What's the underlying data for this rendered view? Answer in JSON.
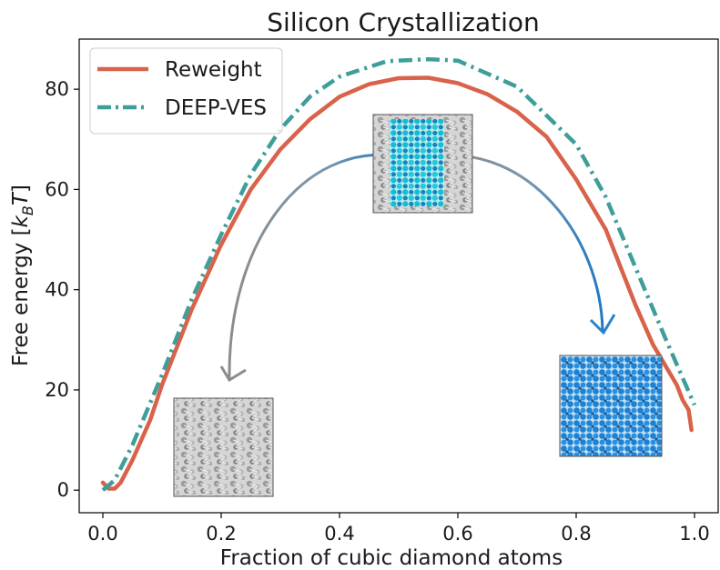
{
  "chart_data": {
    "type": "line",
    "title": "Silicon Crystallization",
    "xlabel": "Fraction of cubic diamond atoms",
    "ylabel": "Free energy",
    "ylabel_unit": "k_B T",
    "xlim": [
      -0.04,
      1.04
    ],
    "ylim": [
      -4.5,
      90
    ],
    "xticks": [
      0.0,
      0.2,
      0.4,
      0.6,
      0.8,
      1.0
    ],
    "xtick_labels": [
      "0.0",
      "0.2",
      "0.4",
      "0.6",
      "0.8",
      "1.0"
    ],
    "yticks": [
      0,
      20,
      40,
      60,
      80
    ],
    "ytick_labels": [
      "0",
      "20",
      "40",
      "60",
      "80"
    ],
    "grid": false,
    "legend_position": "top-left",
    "series": [
      {
        "name": "Reweight",
        "color": "#d9624a",
        "style": "solid",
        "x": [
          0.0,
          0.01,
          0.02,
          0.03,
          0.05,
          0.08,
          0.1,
          0.15,
          0.2,
          0.25,
          0.3,
          0.35,
          0.4,
          0.45,
          0.5,
          0.55,
          0.6,
          0.65,
          0.7,
          0.75,
          0.8,
          0.85,
          0.9,
          0.93,
          0.95,
          0.97,
          0.98,
          0.99,
          0.995
        ],
        "y": [
          1.5,
          0.3,
          0.3,
          1.5,
          6,
          14,
          21,
          36,
          49,
          60,
          68,
          74,
          78.5,
          81,
          82.2,
          82.3,
          81.2,
          79,
          75.5,
          70.5,
          62,
          52,
          37,
          29,
          25,
          21,
          18,
          16,
          12
        ]
      },
      {
        "name": "DEEP-VES",
        "color": "#3e9e9a",
        "style": "dashdot",
        "x": [
          0.0,
          0.02,
          0.05,
          0.1,
          0.15,
          0.2,
          0.25,
          0.3,
          0.35,
          0.4,
          0.48,
          0.55,
          0.6,
          0.7,
          0.8,
          0.85,
          0.9,
          0.95,
          1.0
        ],
        "y": [
          0,
          2,
          9,
          23,
          38,
          51,
          63,
          72,
          78.5,
          82.5,
          85.6,
          86,
          85.7,
          80.5,
          69,
          58.5,
          44.5,
          30.5,
          17
        ]
      }
    ],
    "annotations": [
      {
        "name": "mixed-structure-inset",
        "at": "curve maximum"
      },
      {
        "name": "liquid-structure-inset",
        "at": "lower left"
      },
      {
        "name": "cubic-diamond-crystal-inset",
        "at": "lower right"
      }
    ]
  }
}
